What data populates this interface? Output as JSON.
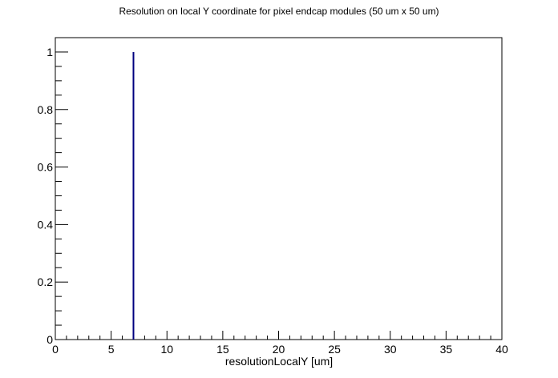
{
  "chart_data": {
    "type": "bar",
    "title": "Resolution on local Y coordinate for pixel endcap modules (50 um x 50 um)",
    "xlabel": "resolutionLocalY [um]",
    "ylabel": "",
    "xlim": [
      0,
      40
    ],
    "ylim": [
      0,
      1.05
    ],
    "x_ticks": [
      0,
      5,
      10,
      15,
      20,
      25,
      30,
      35,
      40
    ],
    "y_ticks": [
      0,
      0.2,
      0.4,
      0.6,
      0.8,
      1
    ],
    "grid": false,
    "legend": "none",
    "series": [
      {
        "color": "#000080",
        "points": [
          {
            "x": 7,
            "y": 1
          }
        ]
      }
    ]
  }
}
